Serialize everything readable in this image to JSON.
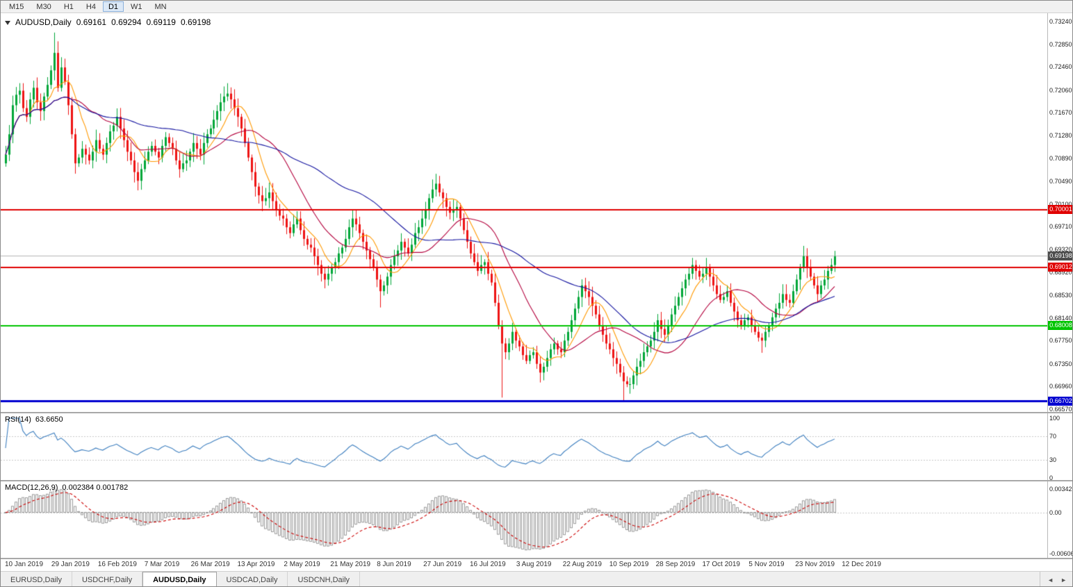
{
  "toolbar": {
    "timeframes": [
      {
        "label": "M15",
        "active": false
      },
      {
        "label": "M30",
        "active": false
      },
      {
        "label": "H1",
        "active": false
      },
      {
        "label": "H4",
        "active": false
      },
      {
        "label": "D1",
        "active": true
      },
      {
        "label": "W1",
        "active": false
      },
      {
        "label": "MN",
        "active": false
      }
    ]
  },
  "chart_header": {
    "symbol": "AUDUSD,Daily",
    "open": "0.69161",
    "high": "0.69294",
    "low": "0.69119",
    "close": "0.69198"
  },
  "price_axis": {
    "labels": [
      "0.73240",
      "0.72850",
      "0.72460",
      "0.72060",
      "0.71670",
      "0.71280",
      "0.70890",
      "0.70490",
      "0.70100",
      "0.69710",
      "0.69320",
      "0.68920",
      "0.68530",
      "0.68140",
      "0.67750",
      "0.67350",
      "0.66960",
      "0.66570"
    ],
    "min": 0.6657,
    "max": 0.7324
  },
  "hlines": [
    {
      "price": 0.70001,
      "label": "0.70001",
      "color": "#e00000",
      "width": 2
    },
    {
      "price": 0.69012,
      "label": "0.69012",
      "color": "#e00000",
      "width": 2
    },
    {
      "price": 0.68008,
      "label": "0.68008",
      "color": "#00c400",
      "width": 2
    },
    {
      "price": 0.66702,
      "label": "0.66702",
      "color": "#0000d0",
      "width": 3
    }
  ],
  "current_price": {
    "value": 0.69198,
    "label": "0.69198",
    "tag_bg": "#4d4d4d",
    "line_color": "#b4b4b4"
  },
  "chart_data": {
    "type": "candlestick",
    "symbol": "AUDUSD",
    "timeframe": "Daily",
    "first_open": 0.708,
    "closes": [
      0.7095,
      0.713,
      0.718,
      0.7198,
      0.7205,
      0.7175,
      0.716,
      0.719,
      0.721,
      0.7185,
      0.717,
      0.7195,
      0.7215,
      0.724,
      0.727,
      0.721,
      0.7245,
      0.722,
      0.718,
      0.713,
      0.708,
      0.709,
      0.7105,
      0.7095,
      0.7085,
      0.71,
      0.712,
      0.7105,
      0.7095,
      0.7115,
      0.7135,
      0.7145,
      0.716,
      0.714,
      0.712,
      0.71,
      0.7085,
      0.7065,
      0.705,
      0.707,
      0.7085,
      0.71,
      0.711,
      0.71,
      0.709,
      0.711,
      0.7125,
      0.7115,
      0.7105,
      0.7085,
      0.707,
      0.708,
      0.7085,
      0.71,
      0.7115,
      0.7105,
      0.7095,
      0.7115,
      0.713,
      0.714,
      0.7155,
      0.717,
      0.7185,
      0.7195,
      0.72,
      0.719,
      0.7175,
      0.716,
      0.714,
      0.7115,
      0.709,
      0.7065,
      0.704,
      0.7025,
      0.7015,
      0.702,
      0.703,
      0.7015,
      0.7,
      0.699,
      0.6985,
      0.697,
      0.696,
      0.6975,
      0.6985,
      0.6965,
      0.695,
      0.694,
      0.6935,
      0.692,
      0.6905,
      0.689,
      0.688,
      0.689,
      0.69,
      0.691,
      0.6925,
      0.6935,
      0.695,
      0.697,
      0.6985,
      0.6975,
      0.696,
      0.6945,
      0.693,
      0.6915,
      0.69,
      0.688,
      0.686,
      0.687,
      0.6885,
      0.6905,
      0.692,
      0.693,
      0.6945,
      0.6935,
      0.6925,
      0.694,
      0.696,
      0.697,
      0.6985,
      0.7,
      0.702,
      0.7035,
      0.7045,
      0.703,
      0.702,
      0.7005,
      0.6995,
      0.7,
      0.7005,
      0.6985,
      0.6965,
      0.6945,
      0.6925,
      0.691,
      0.6895,
      0.6905,
      0.691,
      0.689,
      0.6875,
      0.684,
      0.68,
      0.677,
      0.6755,
      0.677,
      0.679,
      0.6775,
      0.6765,
      0.675,
      0.674,
      0.675,
      0.6755,
      0.6735,
      0.672,
      0.673,
      0.6745,
      0.676,
      0.677,
      0.676,
      0.6755,
      0.6775,
      0.679,
      0.681,
      0.683,
      0.685,
      0.687,
      0.686,
      0.685,
      0.6835,
      0.682,
      0.68,
      0.6785,
      0.677,
      0.676,
      0.6745,
      0.6735,
      0.672,
      0.6705,
      0.67,
      0.67,
      0.6715,
      0.673,
      0.674,
      0.6755,
      0.6765,
      0.6775,
      0.679,
      0.681,
      0.6795,
      0.6785,
      0.68,
      0.682,
      0.6835,
      0.685,
      0.6865,
      0.688,
      0.689,
      0.6905,
      0.6895,
      0.6885,
      0.689,
      0.69,
      0.6885,
      0.687,
      0.6855,
      0.6845,
      0.685,
      0.686,
      0.684,
      0.6825,
      0.681,
      0.68,
      0.681,
      0.6815,
      0.68,
      0.679,
      0.678,
      0.6775,
      0.679,
      0.68,
      0.6815,
      0.683,
      0.684,
      0.6855,
      0.6845,
      0.684,
      0.686,
      0.688,
      0.69,
      0.692,
      0.69,
      0.6885,
      0.687,
      0.6855,
      0.687,
      0.688,
      0.6895,
      0.6905,
      0.69198
    ],
    "spikes": [
      {
        "i": 14,
        "high": 0.7305
      },
      {
        "i": 15,
        "high": 0.729
      },
      {
        "i": 64,
        "high": 0.7212
      },
      {
        "i": 92,
        "low": 0.6865
      },
      {
        "i": 100,
        "high": 0.7
      },
      {
        "i": 108,
        "low": 0.6832
      },
      {
        "i": 124,
        "high": 0.7062
      },
      {
        "i": 143,
        "low": 0.6677
      },
      {
        "i": 178,
        "low": 0.667
      },
      {
        "i": 218,
        "low": 0.6754
      },
      {
        "i": 230,
        "high": 0.6938
      }
    ],
    "up_color": "#00a638",
    "down_color": "#ee1313",
    "moving_averages": [
      {
        "period": 8,
        "color": "#ff9900"
      },
      {
        "period": 20,
        "color": "#b4003c"
      },
      {
        "period": 50,
        "color": "#1414a0"
      }
    ],
    "x_labels": [
      "10 Jan 2019",
      "29 Jan 2019",
      "16 Feb 2019",
      "7 Mar 2019",
      "26 Mar 2019",
      "13 Apr 2019",
      "2 May 2019",
      "21 May 2019",
      "8 Jun 2019",
      "27 Jun 2019",
      "16 Jul 2019",
      "3 Aug 2019",
      "22 Aug 2019",
      "10 Sep 2019",
      "28 Sep 2019",
      "17 Oct 2019",
      "5 Nov 2019",
      "23 Nov 2019",
      "12 Dec 2019"
    ],
    "indicators": {
      "rsi": {
        "label": "RSI(14)",
        "value": "63.6650",
        "period": 14,
        "levels": [
          70,
          30
        ],
        "axis_labels": [
          "100",
          "70",
          "30",
          "0"
        ],
        "color": "#3c7ebf"
      },
      "macd": {
        "label": "MACD(12,26,9)",
        "values": "0.002384 0.001782",
        "fast": 12,
        "slow": 26,
        "signal": 9,
        "axis_labels": [
          "0.003421",
          "0.00",
          "-0.006069"
        ],
        "axis_max": 0.003421,
        "axis_min": -0.006069,
        "hist_color": "#9a9a9a",
        "signal_color": "#cc0000"
      }
    }
  },
  "tabs": {
    "items": [
      {
        "label": "EURUSD,Daily",
        "active": false
      },
      {
        "label": "USDCHF,Daily",
        "active": false
      },
      {
        "label": "AUDUSD,Daily",
        "active": true
      },
      {
        "label": "USDCAD,Daily",
        "active": false
      },
      {
        "label": "USDCNH,Daily",
        "active": false
      }
    ],
    "scroll_left": "◄",
    "scroll_right": "►"
  }
}
